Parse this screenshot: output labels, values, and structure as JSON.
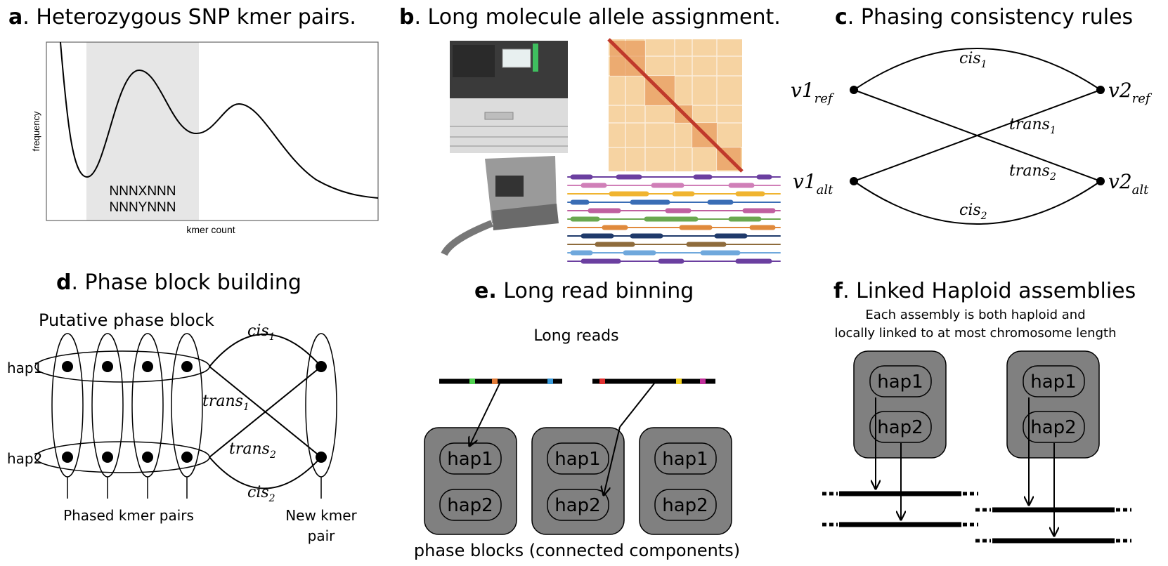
{
  "panels": {
    "a": {
      "letter": "a",
      "title": ". Heterozygous SNP kmer pairs.",
      "ylabel": "frequency",
      "xlabel": "kmer count",
      "kmer1": "NNNXNNN",
      "kmer2": "NNNYNNN"
    },
    "b": {
      "letter": "b",
      "title": ". Long molecule allele assignment."
    },
    "c": {
      "letter": "c",
      "title": ". Phasing consistency rules",
      "v1ref": "v1",
      "v1ref_sub": "ref",
      "v2ref": "v2",
      "v2ref_sub": "ref",
      "v1alt": "v1",
      "v1alt_sub": "alt",
      "v2alt": "v2",
      "v2alt_sub": "alt",
      "cis1": "cis",
      "cis1_sub": "1",
      "cis2": "cis",
      "cis2_sub": "2",
      "trans1": "trans",
      "trans1_sub": "1",
      "trans2": "trans",
      "trans2_sub": "2"
    },
    "d": {
      "letter": "d",
      "title": ". Phase block building",
      "putative": "Putative phase block",
      "hap1": "hap1",
      "hap2": "hap2",
      "phased": "Phased kmer pairs",
      "new1": "New kmer",
      "new2": "pair",
      "cis1": "cis",
      "cis1_sub": "1",
      "cis2": "cis",
      "cis2_sub": "2",
      "trans1": "trans",
      "trans1_sub": "1",
      "trans2": "trans",
      "trans2_sub": "2"
    },
    "e": {
      "letter": "e.",
      "title": " Long read binning",
      "longreads": "Long reads",
      "hap1": "hap1",
      "hap2": "hap2",
      "caption": "phase blocks (connected components)"
    },
    "f": {
      "letter": "f",
      "title": ". Linked Haploid assemblies",
      "sub1": "Each assembly is both haploid and",
      "sub2": "locally linked to at most chromosome length",
      "hap1": "hap1",
      "hap2": "hap2"
    }
  },
  "colors": {
    "shade": "#e6e6e6",
    "box": "#808080",
    "device_dark": "#3a3a3a",
    "device_light": "#dcdcdc",
    "heat": "#f6d3a2",
    "heat_diag": "#c0392b"
  }
}
